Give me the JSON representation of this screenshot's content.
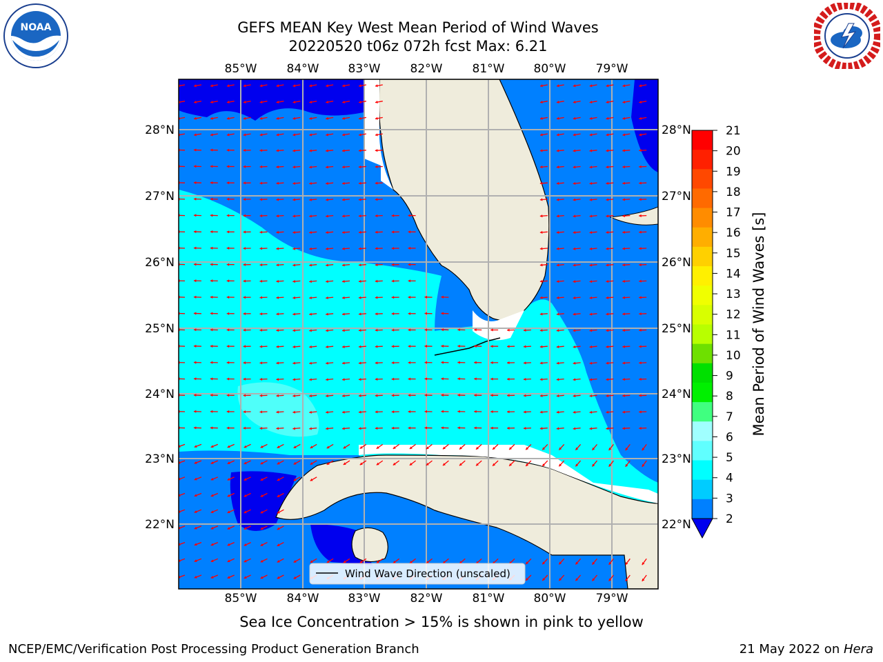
{
  "title": {
    "line1": "GEFS MEAN Key West Mean Period of Wind Waves",
    "line2": "20220520 t06z 072h fcst   Max: 6.21"
  },
  "logos": {
    "left": "NOAA",
    "right": "NATIONAL WEATHER SERVICE"
  },
  "map": {
    "lon_labels": [
      "85°W",
      "84°W",
      "83°W",
      "82°W",
      "81°W",
      "80°W",
      "79°W"
    ],
    "lat_labels": [
      "28°N",
      "27°N",
      "26°N",
      "25°N",
      "24°N",
      "23°N",
      "22°N"
    ],
    "legend": "Wind Wave Direction (unscaled)"
  },
  "colorbar": {
    "label": "Mean Period of Wind Waves [s]",
    "ticks": [
      "21",
      "20",
      "19",
      "18",
      "17",
      "16",
      "15",
      "14",
      "13",
      "12",
      "11",
      "10",
      "9",
      "8",
      "7",
      "6",
      "5",
      "4",
      "3",
      "2"
    ],
    "colors": [
      "#ff0000",
      "#ff2000",
      "#ff4800",
      "#ff6a00",
      "#ff8c00",
      "#ffae00",
      "#ffd000",
      "#fff000",
      "#f0ff00",
      "#d8ff00",
      "#b8ff00",
      "#6ee000",
      "#00e000",
      "#00f000",
      "#40ff80",
      "#a0ffff",
      "#60ffff",
      "#00ffff",
      "#00ccff",
      "#0080ff"
    ]
  },
  "note": "Sea Ice Concentration > 15% is shown in pink to yellow",
  "footer": {
    "left": "NCEP/EMC/Verification Post Processing Product Generation Branch",
    "right_prefix": "21 May 2022 on ",
    "right_host": "Hera"
  }
}
